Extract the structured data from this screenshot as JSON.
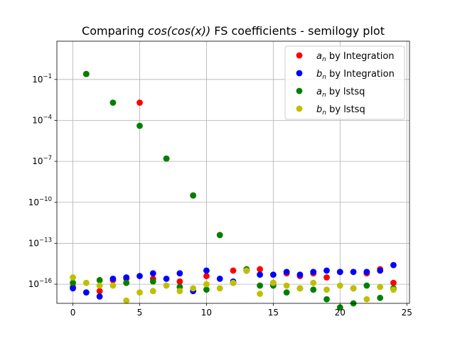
{
  "chart_data": {
    "type": "scatter",
    "title": "Comparing cos(cos(x)) FS coefficients - semilogy plot",
    "title_parts": {
      "prefix": "Comparing ",
      "math": "cos(cos(x))",
      "suffix": " FS coefficients - semilogy plot"
    },
    "xlabel": "",
    "ylabel": "",
    "y_scale": "log",
    "xlim": [
      -1.2,
      25.2
    ],
    "ylim_log10": [
      -17.4,
      1.8
    ],
    "x_ticks": [
      0,
      5,
      10,
      15,
      20,
      25
    ],
    "y_ticks": [
      {
        "exp": -1,
        "label": "10",
        "sup": "−1"
      },
      {
        "exp": -4,
        "label": "10",
        "sup": "−4"
      },
      {
        "exp": -7,
        "label": "10",
        "sup": "−7"
      },
      {
        "exp": -10,
        "label": "10",
        "sup": "−10"
      },
      {
        "exp": -13,
        "label": "10",
        "sup": "−13"
      },
      {
        "exp": -16,
        "label": "10",
        "sup": "−16"
      }
    ],
    "grid": true,
    "legend_position": "top-right",
    "series": [
      {
        "name": "a_n by Integration",
        "legend_sym": "a",
        "legend_sub": "n",
        "legend_text": " by Integration",
        "color": "#ff0000",
        "x": [
          0,
          1,
          2,
          3,
          4,
          5,
          6,
          7,
          8,
          9,
          10,
          11,
          12,
          13,
          14,
          15,
          16,
          17,
          18,
          19,
          20,
          21,
          22,
          23,
          24
        ],
        "y_log10": [
          -16.2,
          -0.6,
          -16.5,
          -15.7,
          -15.6,
          -2.7,
          -15.6,
          -6.8,
          -15.8,
          -9.5,
          -15.4,
          -12.4,
          -15.0,
          -15.0,
          -14.9,
          -15.9,
          -15.2,
          -15.4,
          -15.2,
          -15.5,
          -15.1,
          -16.3,
          -15.2,
          -14.9,
          -15.9
        ]
      },
      {
        "name": "b_n by Integration",
        "legend_sym": "b",
        "legend_sub": "n",
        "legend_text": " by Integration",
        "color": "#0000ff",
        "x": [
          0,
          1,
          2,
          3,
          4,
          5,
          6,
          7,
          8,
          9,
          10,
          11,
          12,
          13,
          14,
          15,
          16,
          17,
          18,
          19,
          20,
          21,
          22,
          23,
          24
        ],
        "y_log10": [
          -16.3,
          -16.6,
          -16.9,
          -15.6,
          -15.5,
          -15.4,
          -15.2,
          -15.6,
          -15.2,
          -16.5,
          -15.0,
          -15.6,
          -15.8,
          -15.0,
          -15.3,
          -15.3,
          -15.1,
          -15.3,
          -15.1,
          -15.0,
          -15.1,
          -15.1,
          -15.1,
          -15.0,
          -14.6
        ]
      },
      {
        "name": "a_n by lstsq",
        "legend_sym": "a",
        "legend_sub": "n",
        "legend_text": " by lstsq",
        "color": "#008000",
        "x": [
          0,
          1,
          2,
          3,
          4,
          5,
          6,
          7,
          8,
          9,
          10,
          11,
          12,
          13,
          14,
          15,
          16,
          17,
          18,
          19,
          20,
          21,
          22,
          23,
          24
        ],
        "y_log10": [
          -15.9,
          -0.6,
          -15.7,
          -2.7,
          -15.9,
          -4.4,
          -15.8,
          -6.8,
          -16.2,
          -9.5,
          -16.4,
          -12.4,
          -15.9,
          -14.9,
          -16.1,
          -16.1,
          -16.6,
          -16.3,
          -16.4,
          -17.1,
          -17.7,
          -17.4,
          -16.1,
          -17.0,
          -16.3
        ]
      },
      {
        "name": "b_n by lstsq",
        "legend_sym": "b",
        "legend_sub": "n",
        "legend_text": " by lstsq",
        "color": "#bfbf00",
        "x": [
          0,
          1,
          2,
          3,
          4,
          5,
          6,
          7,
          8,
          9,
          10,
          11,
          12,
          13,
          14,
          15,
          16,
          17,
          18,
          19,
          20,
          21,
          22,
          23,
          24
        ],
        "y_log10": [
          -15.5,
          -15.9,
          -16.1,
          -16.1,
          -17.2,
          -16.6,
          -16.5,
          -16.1,
          -16.5,
          -16.3,
          -16.0,
          -16.3,
          -15.9,
          -15.0,
          -16.7,
          -15.9,
          -16.1,
          -16.3,
          -15.9,
          -16.4,
          -16.1,
          -16.3,
          -17.1,
          -16.2,
          -16.4
        ]
      }
    ]
  }
}
